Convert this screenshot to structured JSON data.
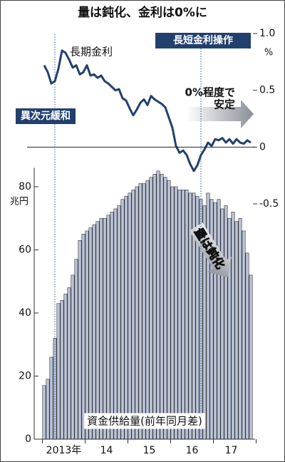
{
  "chart_data": {
    "type": "bar",
    "title": "量は鈍化、金利は0%に",
    "categories": [
      null,
      null,
      null,
      null,
      null,
      null,
      null,
      null,
      null,
      null,
      null,
      null,
      null,
      null,
      null,
      null,
      null,
      null,
      null,
      null,
      null,
      null,
      null,
      null,
      null,
      null,
      null,
      null,
      null,
      null,
      null,
      null,
      null,
      null,
      null,
      null,
      null,
      null,
      null,
      null,
      null,
      null,
      null,
      null,
      null,
      null,
      null,
      null,
      null,
      null,
      null,
      null,
      null,
      null,
      null,
      null,
      null,
      null,
      null
    ],
    "series": [
      {
        "name": "資金供給量(前年同月差)",
        "color": "#b9c3d6",
        "values": [
          17,
          19,
          26,
          32,
          43,
          44,
          46,
          48,
          52,
          57,
          63,
          65,
          66,
          67,
          68,
          69,
          70,
          70,
          71,
          72,
          73,
          74,
          76,
          77,
          78,
          79,
          80,
          81,
          81,
          82,
          83,
          84,
          85,
          84,
          83,
          82,
          80,
          80,
          79,
          79,
          79,
          78,
          78,
          77,
          76,
          74,
          78,
          76,
          75,
          76,
          73,
          74,
          70,
          72,
          69,
          70,
          66,
          59,
          52
        ]
      },
      {
        "name": "長期金利",
        "color": "#22406e",
        "axis": "y2",
        "type": "line",
        "values": [
          0.72,
          0.66,
          0.56,
          0.58,
          0.69,
          0.85,
          0.83,
          0.77,
          0.7,
          0.72,
          0.64,
          0.66,
          0.72,
          0.63,
          0.64,
          0.61,
          0.63,
          0.58,
          0.56,
          0.53,
          0.5,
          0.51,
          0.43,
          0.41,
          0.34,
          0.28,
          0.33,
          0.39,
          0.42,
          0.37,
          0.45,
          0.42,
          0.4,
          0.38,
          0.35,
          0.26,
          0.17,
          0.01,
          -0.05,
          -0.03,
          -0.07,
          -0.15,
          -0.21,
          -0.16,
          -0.07,
          -0.02,
          0.04,
          0.01,
          0.07,
          0.06,
          0.08,
          0.04,
          0.07,
          0.03,
          0.07,
          0.04,
          0.03,
          0.06,
          0.04
        ]
      }
    ],
    "ylim": [
      0,
      86
    ],
    "yticks": [
      0,
      20,
      40,
      60,
      80
    ],
    "y_unit": "兆円",
    "y2lim": [
      -0.5,
      1
    ],
    "y2ticks": [
      -0.5,
      0,
      0.5,
      {
        "value": 1,
        "label": "1.0"
      }
    ],
    "y2_unit": "%",
    "xticks": [
      {
        "value": 5.5,
        "label": "2013年"
      },
      {
        "value": 17.5,
        "label": "14"
      },
      {
        "value": 29.5,
        "label": "15"
      },
      {
        "value": 41.5,
        "label": "16"
      },
      {
        "value": 52.5,
        "label": "17"
      }
    ],
    "annotations": [
      "異次元緩和",
      "長短金利操作",
      "0%程度で",
      "安定",
      "量は鈍化"
    ]
  }
}
